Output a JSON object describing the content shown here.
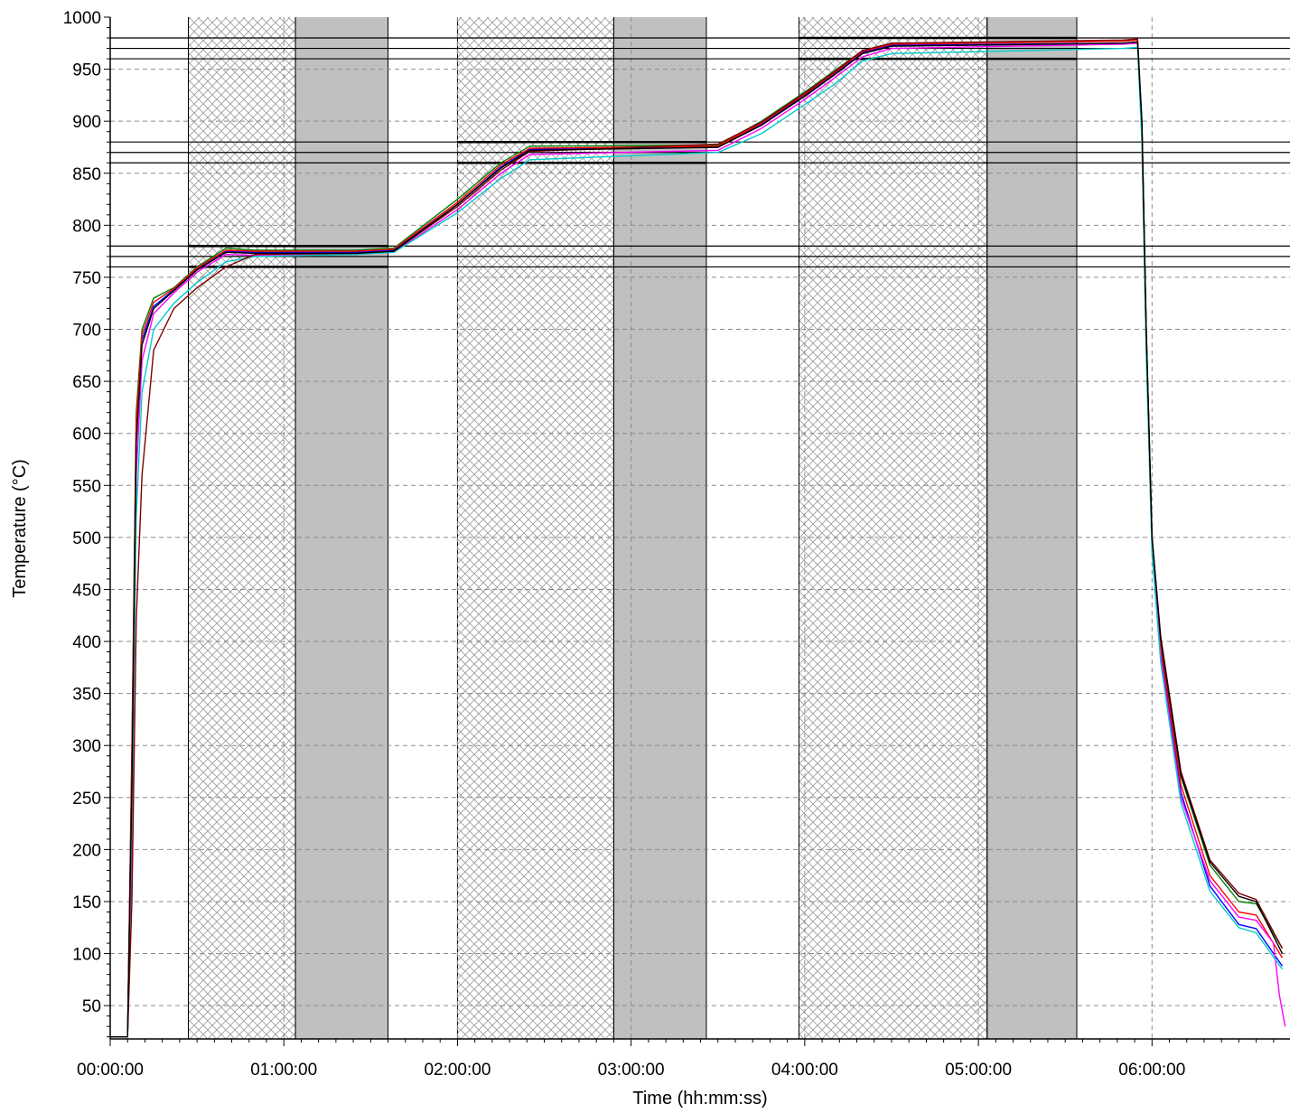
{
  "chart_data": {
    "type": "line",
    "xlabel": "Time (hh:mm:ss)",
    "ylabel": "Temperature (°C)",
    "xlim_seconds": [
      0,
      24460
    ],
    "ylim": [
      18,
      1000
    ],
    "x_ticks": [
      {
        "t": 0,
        "label": "00:00:00"
      },
      {
        "t": 3600,
        "label": "01:00:00"
      },
      {
        "t": 7200,
        "label": "02:00:00"
      },
      {
        "t": 10800,
        "label": "03:00:00"
      },
      {
        "t": 14400,
        "label": "04:00:00"
      },
      {
        "t": 18000,
        "label": "05:00:00"
      },
      {
        "t": 21600,
        "label": "06:00:00"
      }
    ],
    "y_ticks": [
      50,
      100,
      150,
      200,
      250,
      300,
      350,
      400,
      450,
      500,
      550,
      600,
      650,
      700,
      750,
      800,
      850,
      900,
      950,
      1000
    ],
    "grid": true,
    "shaded_regions": [
      {
        "start": "00:27:00",
        "end": "01:04:00",
        "style": "hatched"
      },
      {
        "start": "01:04:00",
        "end": "01:36:00",
        "style": "gray"
      },
      {
        "start": "02:00:00",
        "end": "02:54:00",
        "style": "hatched"
      },
      {
        "start": "02:54:00",
        "end": "03:26:00",
        "style": "gray"
      },
      {
        "start": "03:58:00",
        "end": "05:03:00",
        "style": "hatched"
      },
      {
        "start": "05:03:00",
        "end": "05:34:00",
        "style": "gray"
      }
    ],
    "tolerance_bands": [
      {
        "start": "00:27:00",
        "end": "01:36:00",
        "low": 760,
        "target": 770,
        "high": 780
      },
      {
        "start": "02:00:00",
        "end": "03:26:00",
        "low": 860,
        "target": 870,
        "high": 880
      },
      {
        "start": "03:58:00",
        "end": "05:34:00",
        "low": 960,
        "target": 970,
        "high": 980
      }
    ],
    "reference_lines": [
      760,
      770,
      780,
      860,
      870,
      880,
      960,
      970,
      980
    ],
    "series": [
      {
        "color": "#008000",
        "points": [
          [
            "00:00:00",
            20
          ],
          [
            "00:06:00",
            20
          ],
          [
            "00:07:30",
            300
          ],
          [
            "00:09:00",
            620
          ],
          [
            "00:11:00",
            700
          ],
          [
            "00:15:00",
            730
          ],
          [
            "00:22:00",
            740
          ],
          [
            "00:30:00",
            760
          ],
          [
            "00:40:00",
            778
          ],
          [
            "00:50:00",
            776
          ],
          [
            "01:25:00",
            776
          ],
          [
            "01:38:00",
            778
          ],
          [
            "02:00:00",
            825
          ],
          [
            "02:15:00",
            860
          ],
          [
            "02:25:00",
            876
          ],
          [
            "03:30:00",
            877
          ],
          [
            "03:45:00",
            900
          ],
          [
            "04:00:00",
            928
          ],
          [
            "04:10:00",
            948
          ],
          [
            "04:20:00",
            968
          ],
          [
            "04:30:00",
            975
          ],
          [
            "05:50:00",
            977
          ],
          [
            "05:55:00",
            978
          ],
          [
            "05:56:30",
            900
          ],
          [
            "05:58:00",
            700
          ],
          [
            "06:00:00",
            500
          ],
          [
            "06:03:00",
            400
          ],
          [
            "06:10:00",
            270
          ],
          [
            "06:20:00",
            185
          ],
          [
            "06:30:00",
            150
          ],
          [
            "06:36:00",
            148
          ],
          [
            "06:45:00",
            105
          ]
        ]
      },
      {
        "color": "#0000ff",
        "points": [
          [
            "00:00:00",
            20
          ],
          [
            "00:06:00",
            20
          ],
          [
            "00:07:30",
            280
          ],
          [
            "00:09:00",
            600
          ],
          [
            "00:11:00",
            690
          ],
          [
            "00:15:00",
            722
          ],
          [
            "00:22:00",
            738
          ],
          [
            "00:30:00",
            758
          ],
          [
            "00:40:00",
            775
          ],
          [
            "00:50:00",
            774
          ],
          [
            "01:25:00",
            774
          ],
          [
            "01:38:00",
            776
          ],
          [
            "02:00:00",
            820
          ],
          [
            "02:15:00",
            856
          ],
          [
            "02:25:00",
            873
          ],
          [
            "03:30:00",
            875
          ],
          [
            "03:45:00",
            897
          ],
          [
            "04:00:00",
            925
          ],
          [
            "04:10:00",
            945
          ],
          [
            "04:20:00",
            966
          ],
          [
            "04:30:00",
            973
          ],
          [
            "05:50:00",
            975
          ],
          [
            "05:55:00",
            976
          ],
          [
            "05:56:30",
            890
          ],
          [
            "05:58:00",
            690
          ],
          [
            "06:00:00",
            495
          ],
          [
            "06:03:00",
            390
          ],
          [
            "06:10:00",
            255
          ],
          [
            "06:20:00",
            165
          ],
          [
            "06:30:00",
            128
          ],
          [
            "06:36:00",
            124
          ],
          [
            "06:45:00",
            88
          ]
        ]
      },
      {
        "color": "#ff0000",
        "points": [
          [
            "00:00:00",
            20
          ],
          [
            "00:06:00",
            20
          ],
          [
            "00:07:30",
            290
          ],
          [
            "00:09:00",
            610
          ],
          [
            "00:11:00",
            695
          ],
          [
            "00:15:00",
            726
          ],
          [
            "00:22:00",
            739
          ],
          [
            "00:30:00",
            759
          ],
          [
            "00:40:00",
            776
          ],
          [
            "00:50:00",
            775
          ],
          [
            "01:25:00",
            775
          ],
          [
            "01:38:00",
            777
          ],
          [
            "02:00:00",
            822
          ],
          [
            "02:15:00",
            858
          ],
          [
            "02:25:00",
            874
          ],
          [
            "03:30:00",
            876
          ],
          [
            "03:45:00",
            898
          ],
          [
            "04:00:00",
            926
          ],
          [
            "04:10:00",
            946
          ],
          [
            "04:20:00",
            967
          ],
          [
            "04:30:00",
            974
          ],
          [
            "05:50:00",
            977
          ],
          [
            "05:55:00",
            978
          ],
          [
            "05:56:30",
            895
          ],
          [
            "05:58:00",
            695
          ],
          [
            "06:00:00",
            498
          ],
          [
            "06:03:00",
            395
          ],
          [
            "06:10:00",
            262
          ],
          [
            "06:20:00",
            175
          ],
          [
            "06:30:00",
            140
          ],
          [
            "06:36:00",
            137
          ],
          [
            "06:45:00",
            96
          ]
        ]
      },
      {
        "color": "#ff00ff",
        "points": [
          [
            "00:00:00",
            20
          ],
          [
            "00:06:00",
            20
          ],
          [
            "00:07:30",
            200
          ],
          [
            "00:09:00",
            560
          ],
          [
            "00:11:00",
            670
          ],
          [
            "00:15:00",
            715
          ],
          [
            "00:22:00",
            735
          ],
          [
            "00:30:00",
            755
          ],
          [
            "00:40:00",
            772
          ],
          [
            "00:50:00",
            771
          ],
          [
            "01:25:00",
            772
          ],
          [
            "01:38:00",
            774
          ],
          [
            "02:00:00",
            815
          ],
          [
            "02:15:00",
            850
          ],
          [
            "02:25:00",
            868
          ],
          [
            "03:30:00",
            872
          ],
          [
            "03:45:00",
            893
          ],
          [
            "04:00:00",
            921
          ],
          [
            "04:10:00",
            941
          ],
          [
            "04:20:00",
            962
          ],
          [
            "04:30:00",
            970
          ],
          [
            "05:50:00",
            974
          ],
          [
            "05:55:00",
            975
          ],
          [
            "05:56:30",
            885
          ],
          [
            "05:58:00",
            680
          ],
          [
            "06:00:00",
            490
          ],
          [
            "06:03:00",
            385
          ],
          [
            "06:10:00",
            250
          ],
          [
            "06:20:00",
            170
          ],
          [
            "06:30:00",
            135
          ],
          [
            "06:36:00",
            132
          ],
          [
            "06:42:00",
            110
          ],
          [
            "06:44:00",
            60
          ],
          [
            "06:46:00",
            30
          ]
        ]
      },
      {
        "color": "#00cccc",
        "points": [
          [
            "00:00:00",
            20
          ],
          [
            "00:06:00",
            20
          ],
          [
            "00:07:30",
            230
          ],
          [
            "00:09:00",
            520
          ],
          [
            "00:11:00",
            640
          ],
          [
            "00:15:00",
            700
          ],
          [
            "00:22:00",
            725
          ],
          [
            "00:30:00",
            745
          ],
          [
            "00:40:00",
            765
          ],
          [
            "00:50:00",
            770
          ],
          [
            "01:25:00",
            772
          ],
          [
            "01:38:00",
            774
          ],
          [
            "02:00:00",
            812
          ],
          [
            "02:15:00",
            845
          ],
          [
            "02:25:00",
            863
          ],
          [
            "03:30:00",
            870
          ],
          [
            "03:45:00",
            888
          ],
          [
            "04:00:00",
            916
          ],
          [
            "04:10:00",
            935
          ],
          [
            "04:20:00",
            958
          ],
          [
            "04:30:00",
            965
          ],
          [
            "05:50:00",
            970
          ],
          [
            "05:55:00",
            971
          ],
          [
            "05:56:30",
            880
          ],
          [
            "05:58:00",
            675
          ],
          [
            "06:00:00",
            485
          ],
          [
            "06:03:00",
            380
          ],
          [
            "06:10:00",
            245
          ],
          [
            "06:20:00",
            160
          ],
          [
            "06:30:00",
            125
          ],
          [
            "06:36:00",
            120
          ],
          [
            "06:45:00",
            85
          ]
        ]
      },
      {
        "color": "#800000",
        "points": [
          [
            "00:00:00",
            20
          ],
          [
            "00:06:00",
            20
          ],
          [
            "00:07:30",
            150
          ],
          [
            "00:09:00",
            420
          ],
          [
            "00:11:00",
            560
          ],
          [
            "00:15:00",
            680
          ],
          [
            "00:22:00",
            720
          ],
          [
            "00:30:00",
            740
          ],
          [
            "00:40:00",
            760
          ],
          [
            "00:50:00",
            772
          ],
          [
            "01:25:00",
            773
          ],
          [
            "01:38:00",
            775
          ],
          [
            "02:00:00",
            818
          ],
          [
            "02:15:00",
            853
          ],
          [
            "02:25:00",
            871
          ],
          [
            "03:30:00",
            878
          ],
          [
            "03:45:00",
            899
          ],
          [
            "04:00:00",
            927
          ],
          [
            "04:10:00",
            947
          ],
          [
            "04:20:00",
            968
          ],
          [
            "04:30:00",
            975
          ],
          [
            "05:50:00",
            978
          ],
          [
            "05:55:00",
            979
          ],
          [
            "05:56:30",
            900
          ],
          [
            "05:58:00",
            700
          ],
          [
            "06:00:00",
            500
          ],
          [
            "06:03:00",
            405
          ],
          [
            "06:10:00",
            275
          ],
          [
            "06:20:00",
            190
          ],
          [
            "06:30:00",
            158
          ],
          [
            "06:36:00",
            152
          ],
          [
            "06:45:00",
            105
          ]
        ]
      },
      {
        "color": "#000000",
        "points": [
          [
            "00:00:00",
            20
          ],
          [
            "00:06:00",
            20
          ],
          [
            "00:07:30",
            260
          ],
          [
            "00:09:00",
            590
          ],
          [
            "00:11:00",
            685
          ],
          [
            "00:15:00",
            720
          ],
          [
            "00:22:00",
            737
          ],
          [
            "00:30:00",
            757
          ],
          [
            "00:40:00",
            774
          ],
          [
            "00:50:00",
            773
          ],
          [
            "01:25:00",
            773
          ],
          [
            "01:38:00",
            775
          ],
          [
            "02:00:00",
            820
          ],
          [
            "02:15:00",
            855
          ],
          [
            "02:25:00",
            872
          ],
          [
            "03:30:00",
            875
          ],
          [
            "03:45:00",
            896
          ],
          [
            "04:00:00",
            924
          ],
          [
            "04:10:00",
            944
          ],
          [
            "04:20:00",
            965
          ],
          [
            "04:30:00",
            972
          ],
          [
            "05:50:00",
            975
          ],
          [
            "05:55:00",
            976
          ],
          [
            "05:56:30",
            898
          ],
          [
            "05:58:00",
            698
          ],
          [
            "06:00:00",
            500
          ],
          [
            "06:03:00",
            402
          ],
          [
            "06:10:00",
            272
          ],
          [
            "06:20:00",
            188
          ],
          [
            "06:30:00",
            155
          ],
          [
            "06:36:00",
            150
          ],
          [
            "06:45:00",
            100
          ]
        ]
      }
    ]
  }
}
